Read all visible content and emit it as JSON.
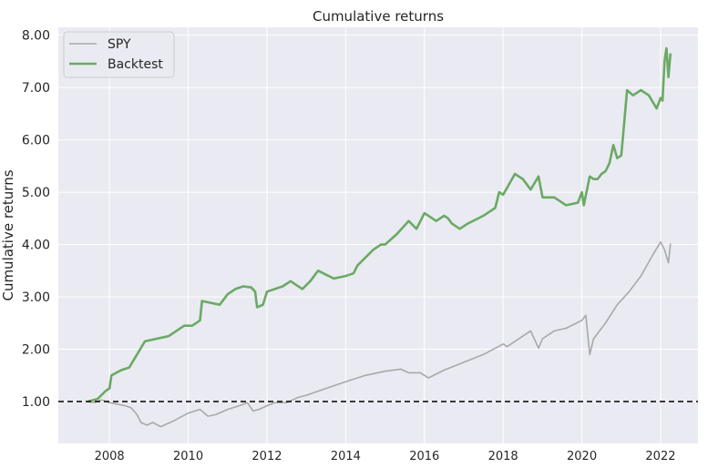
{
  "chart_data": {
    "type": "line",
    "title": "Cumulative returns",
    "xlabel": "",
    "ylabel": "Cumulative returns",
    "xlim": [
      2006.7,
      2022.95
    ],
    "ylim": [
      0.2,
      8.15
    ],
    "grid": true,
    "background": "#eaeaf2",
    "grid_color": "#ffffff",
    "legend_position": "top-left",
    "x_ticks": [
      2008,
      2010,
      2012,
      2014,
      2016,
      2018,
      2020,
      2022
    ],
    "x_tick_labels": [
      "2008",
      "2010",
      "2012",
      "2014",
      "2016",
      "2018",
      "2020",
      "2022"
    ],
    "y_ticks": [
      1,
      2,
      3,
      4,
      5,
      6,
      7,
      8
    ],
    "y_tick_labels": [
      "1.00",
      "2.00",
      "3.00",
      "4.00",
      "5.00",
      "6.00",
      "7.00",
      "8.00"
    ],
    "reference_line": {
      "y": 1.0,
      "style": "dashed",
      "color": "#000000"
    },
    "series": [
      {
        "name": "SPY",
        "color": "#a9a9a9",
        "x": [
          2007.45,
          2007.6,
          2007.8,
          2008.0,
          2008.2,
          2008.4,
          2008.55,
          2008.7,
          2008.8,
          2008.95,
          2009.1,
          2009.3,
          2009.6,
          2010.0,
          2010.3,
          2010.5,
          2010.7,
          2011.0,
          2011.3,
          2011.5,
          2011.65,
          2011.8,
          2012.0,
          2012.2,
          2012.5,
          2012.8,
          2013.0,
          2013.5,
          2014.0,
          2014.5,
          2015.0,
          2015.4,
          2015.6,
          2015.9,
          2016.1,
          2016.5,
          2017.0,
          2017.5,
          2018.0,
          2018.1,
          2018.3,
          2018.7,
          2018.9,
          2019.0,
          2019.3,
          2019.6,
          2020.0,
          2020.1,
          2020.2,
          2020.3,
          2020.6,
          2020.9,
          2021.2,
          2021.5,
          2021.8,
          2022.0,
          2022.1,
          2022.2,
          2022.25
        ],
        "y": [
          1.0,
          0.98,
          1.03,
          0.98,
          0.95,
          0.92,
          0.88,
          0.75,
          0.6,
          0.55,
          0.6,
          0.52,
          0.62,
          0.78,
          0.85,
          0.72,
          0.75,
          0.85,
          0.92,
          0.98,
          0.82,
          0.85,
          0.92,
          0.98,
          0.98,
          1.08,
          1.12,
          1.25,
          1.38,
          1.5,
          1.58,
          1.62,
          1.55,
          1.55,
          1.45,
          1.6,
          1.75,
          1.9,
          2.1,
          2.05,
          2.15,
          2.35,
          2.02,
          2.2,
          2.35,
          2.4,
          2.55,
          2.65,
          1.9,
          2.2,
          2.5,
          2.85,
          3.1,
          3.4,
          3.8,
          4.05,
          3.9,
          3.65,
          4.02
        ]
      },
      {
        "name": "Backtest",
        "color": "#6aaa64",
        "x": [
          2007.45,
          2007.7,
          2007.9,
          2008.0,
          2008.05,
          2008.3,
          2008.5,
          2008.7,
          2008.9,
          2009.2,
          2009.5,
          2009.7,
          2009.9,
          2010.1,
          2010.3,
          2010.35,
          2010.8,
          2011.0,
          2011.2,
          2011.4,
          2011.6,
          2011.7,
          2011.75,
          2011.9,
          2012.0,
          2012.4,
          2012.6,
          2012.9,
          2013.1,
          2013.3,
          2013.7,
          2014.0,
          2014.2,
          2014.3,
          2014.7,
          2014.9,
          2015.0,
          2015.3,
          2015.6,
          2015.8,
          2016.0,
          2016.3,
          2016.5,
          2016.6,
          2016.7,
          2016.9,
          2017.1,
          2017.5,
          2017.8,
          2017.9,
          2018.0,
          2018.3,
          2018.5,
          2018.7,
          2018.9,
          2019.0,
          2019.3,
          2019.6,
          2019.9,
          2020.0,
          2020.05,
          2020.2,
          2020.3,
          2020.4,
          2020.5,
          2020.6,
          2020.7,
          2020.8,
          2020.9,
          2021.0,
          2021.05,
          2021.15,
          2021.3,
          2021.5,
          2021.7,
          2021.9,
          2022.0,
          2022.05,
          2022.1,
          2022.15,
          2022.2,
          2022.25
        ],
        "y": [
          1.0,
          1.05,
          1.2,
          1.25,
          1.5,
          1.6,
          1.65,
          1.9,
          2.15,
          2.2,
          2.25,
          2.35,
          2.45,
          2.45,
          2.55,
          2.92,
          2.85,
          3.05,
          3.15,
          3.2,
          3.18,
          3.1,
          2.8,
          2.85,
          3.1,
          3.2,
          3.3,
          3.15,
          3.3,
          3.5,
          3.35,
          3.4,
          3.45,
          3.6,
          3.9,
          4.0,
          4.0,
          4.2,
          4.45,
          4.3,
          4.6,
          4.45,
          4.55,
          4.5,
          4.4,
          4.3,
          4.4,
          4.55,
          4.7,
          5.0,
          4.95,
          5.35,
          5.25,
          5.05,
          5.3,
          4.9,
          4.9,
          4.75,
          4.8,
          5.0,
          4.75,
          5.3,
          5.25,
          5.25,
          5.35,
          5.4,
          5.55,
          5.9,
          5.65,
          5.7,
          6.1,
          6.95,
          6.85,
          6.95,
          6.85,
          6.6,
          6.8,
          6.75,
          7.5,
          7.75,
          7.2,
          7.65
        ]
      }
    ]
  }
}
